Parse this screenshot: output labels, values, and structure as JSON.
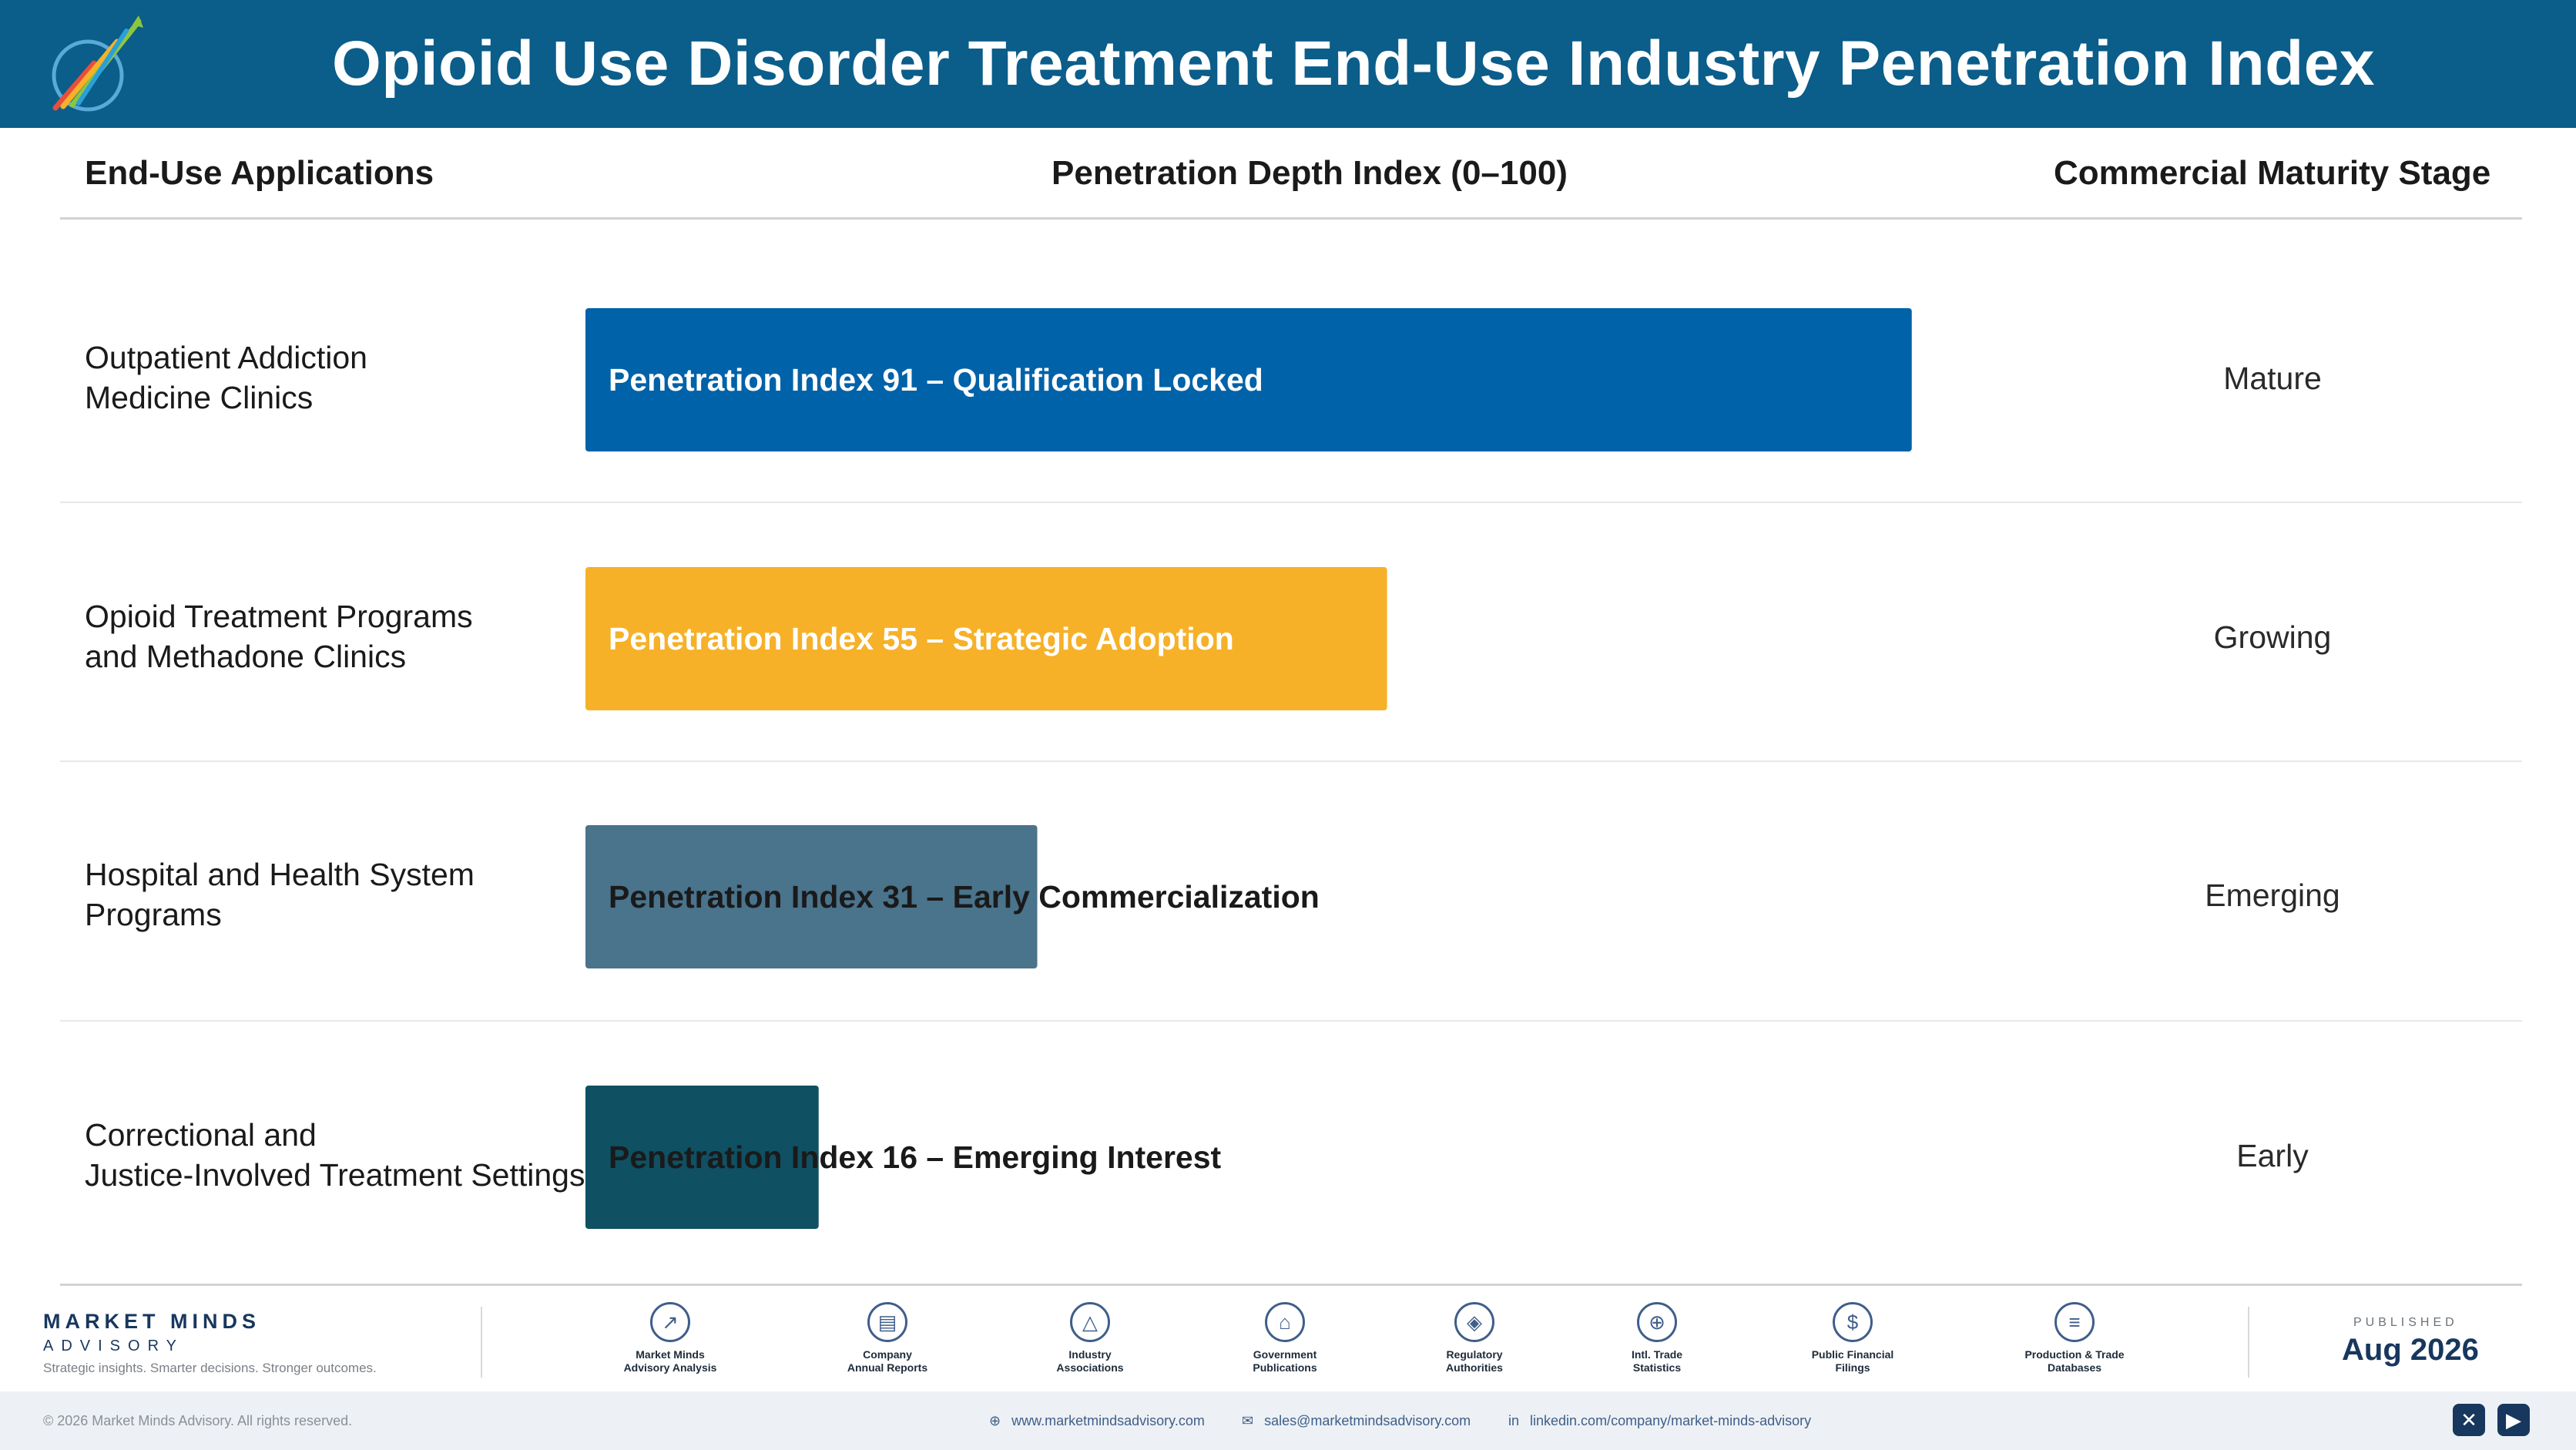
{
  "header": {
    "title": "Opioid Use Disorder Treatment End-Use Industry Penetration Index"
  },
  "columns": {
    "applications": "End-Use Applications",
    "index": "Penetration Depth Index (0–100)",
    "stage": "Commercial Maturity Stage"
  },
  "rows": [
    {
      "label": "Outpatient Addiction\nMedicine Clinics",
      "stage": "Mature"
    },
    {
      "label": "Opioid Treatment Programs\nand Methadone Clinics",
      "stage": "Growing"
    },
    {
      "label": "Hospital and Health System\nPrograms",
      "stage": "Emerging"
    },
    {
      "label": "Correctional and\nJustice-Involved Treatment Settings",
      "stage": "Early"
    }
  ],
  "chart_data": {
    "type": "bar",
    "orientation": "horizontal",
    "categories": [
      "Outpatient Addiction Medicine Clinics",
      "Opioid Treatment Programs and Methadone Clinics",
      "Hospital and Health System Programs",
      "Correctional and Justice-Involved Treatment Settings"
    ],
    "values": [
      91,
      55,
      31,
      16
    ],
    "bar_labels": [
      "Penetration Index 91 – Qualification Locked",
      "Penetration Index 55 – Strategic Adoption",
      "Penetration Index 31 – Early Commercialization",
      "Penetration Index 16 – Emerging Interest"
    ],
    "colors": [
      "#0062a8",
      "#f6b129",
      "#4a738c",
      "#0f5063"
    ],
    "xlim": [
      0,
      100
    ],
    "xlabel": "Penetration Depth Index (0–100)",
    "grid": false
  },
  "footer": {
    "brand_name": "MARKET MINDS",
    "brand_sub": "ADVISORY",
    "tagline": "Strategic insights. Smarter decisions. Stronger outcomes.",
    "sources": [
      {
        "label": "Market Minds\nAdvisory Analysis",
        "icon": "trend-icon"
      },
      {
        "label": "Company\nAnnual Reports",
        "icon": "document-icon"
      },
      {
        "label": "Industry\nAssociations",
        "icon": "network-icon"
      },
      {
        "label": "Government\nPublications",
        "icon": "government-icon"
      },
      {
        "label": "Regulatory\nAuthorities",
        "icon": "shield-icon"
      },
      {
        "label": "Intl. Trade\nStatistics",
        "icon": "globe-icon"
      },
      {
        "label": "Public Financial\nFilings",
        "icon": "dollar-icon"
      },
      {
        "label": "Production & Trade\nDatabases",
        "icon": "database-icon"
      }
    ],
    "published_label": "PUBLISHED",
    "published_date": "Aug 2026",
    "copyright": "© 2026 Market Minds Advisory. All rights reserved.",
    "website": "www.marketmindsadvisory.com",
    "email": "sales@marketmindsadvisory.com",
    "linkedin": "linkedin.com/company/market-minds-advisory"
  }
}
